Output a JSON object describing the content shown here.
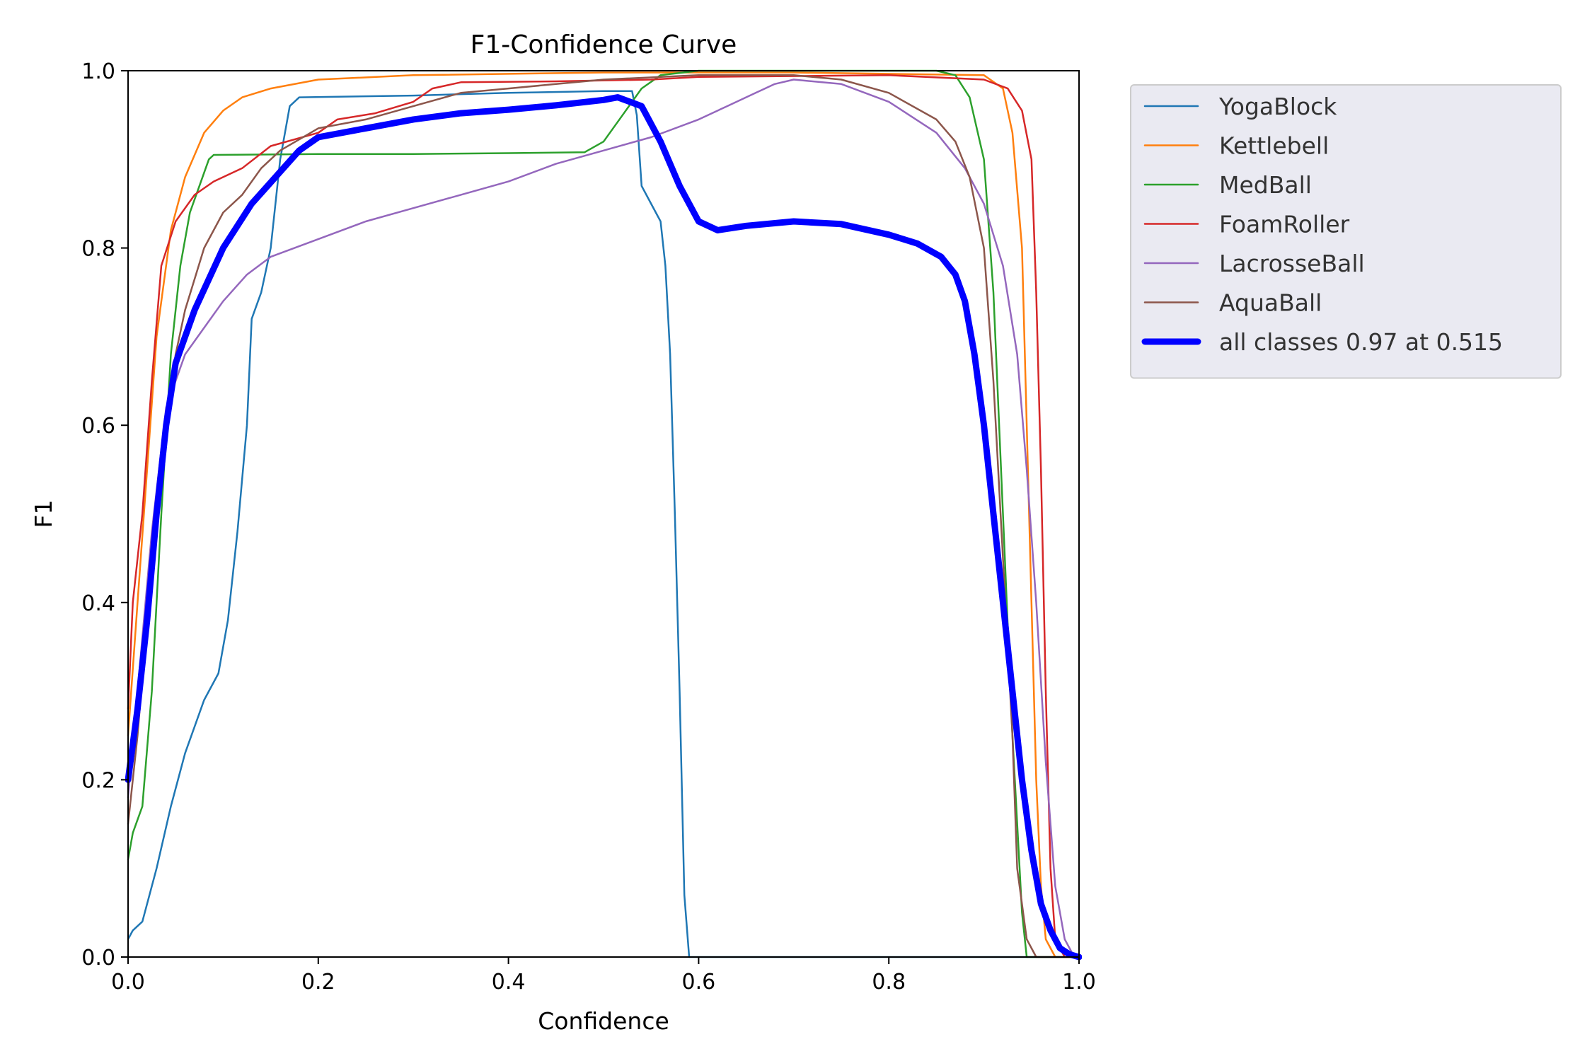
{
  "chart_data": {
    "type": "line",
    "title": "F1-Confidence Curve",
    "xlabel": "Confidence",
    "ylabel": "F1",
    "xlim": [
      0,
      1
    ],
    "ylim": [
      0,
      1
    ],
    "xticks": [
      "0.0",
      "0.2",
      "0.4",
      "0.6",
      "0.8",
      "1.0"
    ],
    "yticks": [
      "0.0",
      "0.2",
      "0.4",
      "0.6",
      "0.8",
      "1.0"
    ],
    "grid": false,
    "legend_position": "outside-top-right",
    "series": [
      {
        "name": "YogaBlock",
        "color": "#1f77b4",
        "width": "thin",
        "points": [
          [
            0,
            0.02
          ],
          [
            0.005,
            0.03
          ],
          [
            0.015,
            0.04
          ],
          [
            0.03,
            0.1
          ],
          [
            0.045,
            0.17
          ],
          [
            0.06,
            0.23
          ],
          [
            0.08,
            0.29
          ],
          [
            0.095,
            0.32
          ],
          [
            0.105,
            0.38
          ],
          [
            0.115,
            0.48
          ],
          [
            0.125,
            0.6
          ],
          [
            0.13,
            0.72
          ],
          [
            0.14,
            0.75
          ],
          [
            0.15,
            0.8
          ],
          [
            0.155,
            0.85
          ],
          [
            0.16,
            0.9
          ],
          [
            0.17,
            0.96
          ],
          [
            0.18,
            0.97
          ],
          [
            0.3,
            0.972
          ],
          [
            0.4,
            0.975
          ],
          [
            0.5,
            0.977
          ],
          [
            0.53,
            0.977
          ],
          [
            0.535,
            0.95
          ],
          [
            0.54,
            0.87
          ],
          [
            0.55,
            0.85
          ],
          [
            0.56,
            0.83
          ],
          [
            0.565,
            0.78
          ],
          [
            0.57,
            0.68
          ],
          [
            0.575,
            0.5
          ],
          [
            0.58,
            0.3
          ],
          [
            0.585,
            0.07
          ],
          [
            0.59,
            0.0
          ],
          [
            1.0,
            0.0
          ]
        ]
      },
      {
        "name": "Kettlebell",
        "color": "#ff7f0e",
        "width": "thin",
        "points": [
          [
            0,
            0.25
          ],
          [
            0.01,
            0.4
          ],
          [
            0.02,
            0.55
          ],
          [
            0.03,
            0.7
          ],
          [
            0.045,
            0.82
          ],
          [
            0.06,
            0.88
          ],
          [
            0.08,
            0.93
          ],
          [
            0.1,
            0.955
          ],
          [
            0.12,
            0.97
          ],
          [
            0.15,
            0.98
          ],
          [
            0.2,
            0.99
          ],
          [
            0.3,
            0.995
          ],
          [
            0.5,
            0.998
          ],
          [
            0.7,
            0.998
          ],
          [
            0.9,
            0.995
          ],
          [
            0.92,
            0.98
          ],
          [
            0.93,
            0.93
          ],
          [
            0.94,
            0.8
          ],
          [
            0.945,
            0.6
          ],
          [
            0.95,
            0.4
          ],
          [
            0.955,
            0.2
          ],
          [
            0.96,
            0.08
          ],
          [
            0.965,
            0.02
          ],
          [
            0.975,
            0.0
          ],
          [
            1.0,
            0.0
          ]
        ]
      },
      {
        "name": "MedBall",
        "color": "#2ca02c",
        "width": "thin",
        "points": [
          [
            0,
            0.11
          ],
          [
            0.005,
            0.14
          ],
          [
            0.015,
            0.17
          ],
          [
            0.025,
            0.3
          ],
          [
            0.035,
            0.5
          ],
          [
            0.045,
            0.68
          ],
          [
            0.055,
            0.78
          ],
          [
            0.065,
            0.84
          ],
          [
            0.075,
            0.87
          ],
          [
            0.085,
            0.9
          ],
          [
            0.09,
            0.905
          ],
          [
            0.2,
            0.906
          ],
          [
            0.3,
            0.906
          ],
          [
            0.4,
            0.907
          ],
          [
            0.48,
            0.908
          ],
          [
            0.5,
            0.92
          ],
          [
            0.52,
            0.95
          ],
          [
            0.54,
            0.98
          ],
          [
            0.56,
            0.995
          ],
          [
            0.6,
            1.0
          ],
          [
            0.85,
            1.0
          ],
          [
            0.87,
            0.995
          ],
          [
            0.885,
            0.97
          ],
          [
            0.9,
            0.9
          ],
          [
            0.91,
            0.75
          ],
          [
            0.92,
            0.5
          ],
          [
            0.93,
            0.25
          ],
          [
            0.94,
            0.05
          ],
          [
            0.945,
            0.0
          ],
          [
            1.0,
            0.0
          ]
        ]
      },
      {
        "name": "FoamRoller",
        "color": "#d62728",
        "width": "thin",
        "points": [
          [
            0,
            0.28
          ],
          [
            0.005,
            0.4
          ],
          [
            0.015,
            0.5
          ],
          [
            0.025,
            0.65
          ],
          [
            0.035,
            0.78
          ],
          [
            0.05,
            0.83
          ],
          [
            0.07,
            0.86
          ],
          [
            0.09,
            0.875
          ],
          [
            0.12,
            0.89
          ],
          [
            0.15,
            0.915
          ],
          [
            0.2,
            0.93
          ],
          [
            0.22,
            0.945
          ],
          [
            0.26,
            0.952
          ],
          [
            0.3,
            0.965
          ],
          [
            0.32,
            0.98
          ],
          [
            0.35,
            0.987
          ],
          [
            0.45,
            0.988
          ],
          [
            0.55,
            0.99
          ],
          [
            0.6,
            0.993
          ],
          [
            0.8,
            0.995
          ],
          [
            0.9,
            0.99
          ],
          [
            0.925,
            0.98
          ],
          [
            0.94,
            0.955
          ],
          [
            0.95,
            0.9
          ],
          [
            0.955,
            0.75
          ],
          [
            0.96,
            0.55
          ],
          [
            0.965,
            0.3
          ],
          [
            0.97,
            0.1
          ],
          [
            0.975,
            0.02
          ],
          [
            0.985,
            0.0
          ],
          [
            1.0,
            0.0
          ]
        ]
      },
      {
        "name": "LacrosseBall",
        "color": "#9467bd",
        "width": "thin",
        "points": [
          [
            0,
            0.18
          ],
          [
            0.01,
            0.3
          ],
          [
            0.025,
            0.48
          ],
          [
            0.04,
            0.62
          ],
          [
            0.06,
            0.68
          ],
          [
            0.08,
            0.71
          ],
          [
            0.1,
            0.74
          ],
          [
            0.125,
            0.77
          ],
          [
            0.15,
            0.79
          ],
          [
            0.2,
            0.81
          ],
          [
            0.25,
            0.83
          ],
          [
            0.3,
            0.845
          ],
          [
            0.35,
            0.86
          ],
          [
            0.4,
            0.875
          ],
          [
            0.45,
            0.895
          ],
          [
            0.5,
            0.91
          ],
          [
            0.55,
            0.925
          ],
          [
            0.6,
            0.945
          ],
          [
            0.63,
            0.96
          ],
          [
            0.66,
            0.975
          ],
          [
            0.68,
            0.985
          ],
          [
            0.7,
            0.99
          ],
          [
            0.75,
            0.985
          ],
          [
            0.8,
            0.965
          ],
          [
            0.85,
            0.93
          ],
          [
            0.88,
            0.89
          ],
          [
            0.9,
            0.85
          ],
          [
            0.92,
            0.78
          ],
          [
            0.935,
            0.68
          ],
          [
            0.945,
            0.55
          ],
          [
            0.955,
            0.4
          ],
          [
            0.965,
            0.22
          ],
          [
            0.975,
            0.08
          ],
          [
            0.985,
            0.02
          ],
          [
            0.995,
            0.0
          ],
          [
            1.0,
            0.0
          ]
        ]
      },
      {
        "name": "AquaBall",
        "color": "#8c564b",
        "width": "thin",
        "points": [
          [
            0,
            0.15
          ],
          [
            0.01,
            0.25
          ],
          [
            0.02,
            0.38
          ],
          [
            0.03,
            0.5
          ],
          [
            0.04,
            0.6
          ],
          [
            0.05,
            0.68
          ],
          [
            0.06,
            0.73
          ],
          [
            0.08,
            0.8
          ],
          [
            0.1,
            0.84
          ],
          [
            0.12,
            0.86
          ],
          [
            0.14,
            0.89
          ],
          [
            0.16,
            0.91
          ],
          [
            0.2,
            0.935
          ],
          [
            0.25,
            0.945
          ],
          [
            0.3,
            0.96
          ],
          [
            0.35,
            0.975
          ],
          [
            0.4,
            0.98
          ],
          [
            0.45,
            0.985
          ],
          [
            0.5,
            0.99
          ],
          [
            0.6,
            0.995
          ],
          [
            0.7,
            0.995
          ],
          [
            0.75,
            0.99
          ],
          [
            0.8,
            0.975
          ],
          [
            0.85,
            0.945
          ],
          [
            0.87,
            0.92
          ],
          [
            0.885,
            0.88
          ],
          [
            0.9,
            0.8
          ],
          [
            0.91,
            0.65
          ],
          [
            0.92,
            0.45
          ],
          [
            0.93,
            0.25
          ],
          [
            0.935,
            0.1
          ],
          [
            0.945,
            0.02
          ],
          [
            0.955,
            0.0
          ],
          [
            1.0,
            0.0
          ]
        ]
      },
      {
        "name": "all classes 0.97 at 0.515",
        "color": "#0000ff",
        "width": "thick",
        "points": [
          [
            0,
            0.2
          ],
          [
            0.01,
            0.28
          ],
          [
            0.02,
            0.38
          ],
          [
            0.03,
            0.5
          ],
          [
            0.04,
            0.6
          ],
          [
            0.05,
            0.67
          ],
          [
            0.07,
            0.73
          ],
          [
            0.1,
            0.8
          ],
          [
            0.13,
            0.85
          ],
          [
            0.155,
            0.88
          ],
          [
            0.18,
            0.91
          ],
          [
            0.2,
            0.925
          ],
          [
            0.25,
            0.935
          ],
          [
            0.3,
            0.945
          ],
          [
            0.35,
            0.952
          ],
          [
            0.4,
            0.956
          ],
          [
            0.45,
            0.961
          ],
          [
            0.5,
            0.967
          ],
          [
            0.515,
            0.97
          ],
          [
            0.54,
            0.96
          ],
          [
            0.56,
            0.92
          ],
          [
            0.58,
            0.87
          ],
          [
            0.6,
            0.83
          ],
          [
            0.62,
            0.82
          ],
          [
            0.65,
            0.825
          ],
          [
            0.7,
            0.83
          ],
          [
            0.75,
            0.827
          ],
          [
            0.8,
            0.815
          ],
          [
            0.83,
            0.805
          ],
          [
            0.855,
            0.79
          ],
          [
            0.87,
            0.77
          ],
          [
            0.88,
            0.74
          ],
          [
            0.89,
            0.68
          ],
          [
            0.9,
            0.6
          ],
          [
            0.91,
            0.5
          ],
          [
            0.92,
            0.4
          ],
          [
            0.93,
            0.3
          ],
          [
            0.94,
            0.2
          ],
          [
            0.95,
            0.12
          ],
          [
            0.96,
            0.06
          ],
          [
            0.97,
            0.03
          ],
          [
            0.98,
            0.01
          ],
          [
            0.99,
            0.003
          ],
          [
            1.0,
            0.0
          ]
        ]
      }
    ]
  }
}
